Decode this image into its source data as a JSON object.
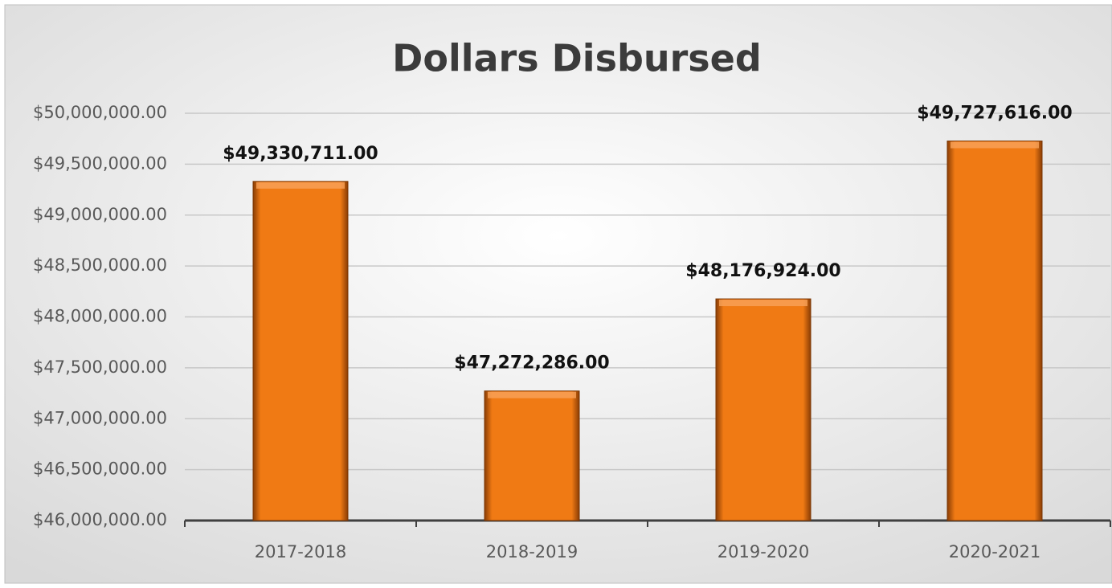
{
  "chart_data": {
    "type": "bar",
    "title": "Dollars Disbursed",
    "categories": [
      "2017-2018",
      "2018-2019",
      "2019-2020",
      "2020-2021"
    ],
    "values": [
      49330711,
      47272286,
      48176924,
      49727616
    ],
    "value_labels": [
      "$49,330,711.00",
      "$47,272,286.00",
      "$48,176,924.00",
      "$49,727,616.00"
    ],
    "color": "#f07a14",
    "ylim": [
      46000000,
      50000000
    ],
    "yticks": [
      {
        "value": 46000000,
        "label": "$46,000,000.00"
      },
      {
        "value": 46500000,
        "label": "$46,500,000.00"
      },
      {
        "value": 47000000,
        "label": "$47,000,000.00"
      },
      {
        "value": 47500000,
        "label": "$47,500,000.00"
      },
      {
        "value": 48000000,
        "label": "$48,000,000.00"
      },
      {
        "value": 48500000,
        "label": "$48,500,000.00"
      },
      {
        "value": 49000000,
        "label": "$49,000,000.00"
      },
      {
        "value": 49500000,
        "label": "$49,500,000.00"
      },
      {
        "value": 50000000,
        "label": "$50,000,000.00"
      }
    ],
    "grid": true
  }
}
